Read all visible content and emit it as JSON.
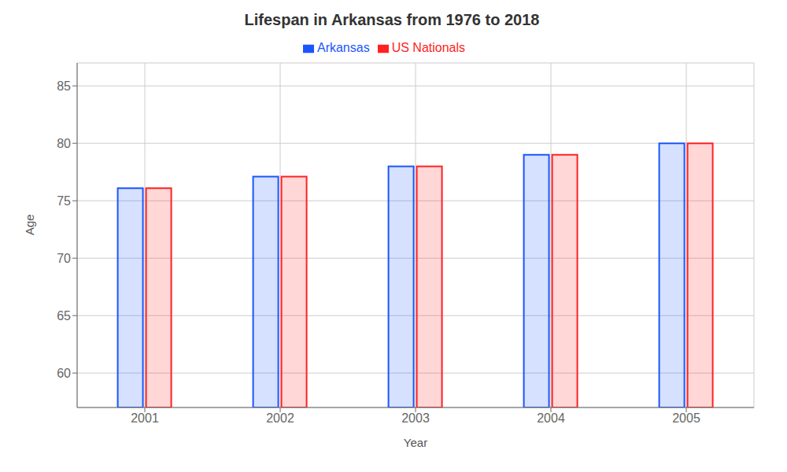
{
  "chart_data": {
    "type": "bar",
    "title": "Lifespan in Arkansas from 1976 to 2018",
    "x_label": "Year",
    "y_label": "Age",
    "categories": [
      "2001",
      "2002",
      "2003",
      "2004",
      "2005"
    ],
    "series": [
      {
        "name": "Arkansas",
        "color": "#1a56ff",
        "values": [
          76.1,
          77.1,
          78.0,
          79.0,
          80.0
        ]
      },
      {
        "name": "US Nationals",
        "color": "#ff2222",
        "values": [
          76.1,
          77.1,
          78.0,
          79.0,
          80.0
        ]
      }
    ],
    "ylim": [
      57,
      87
    ],
    "yticks": [
      60,
      65,
      70,
      75,
      80,
      85
    ],
    "grid": true,
    "legend": "top"
  }
}
